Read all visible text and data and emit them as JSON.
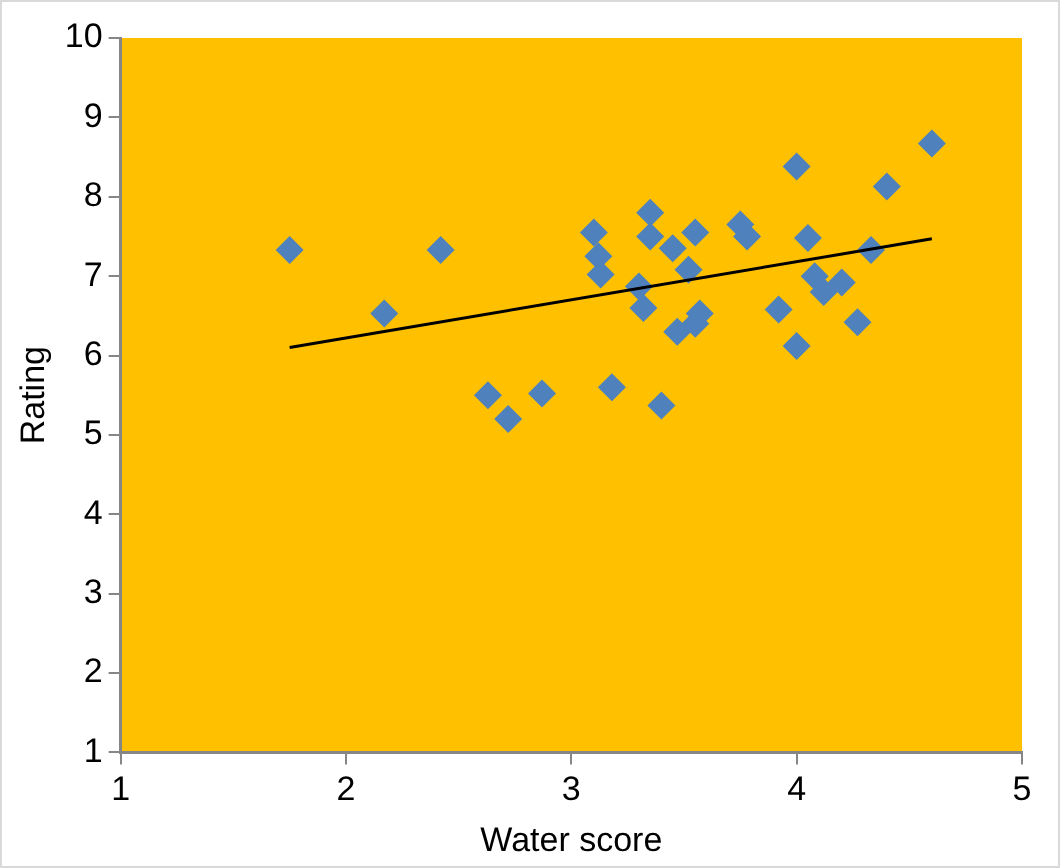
{
  "chart_data": {
    "type": "scatter",
    "xlabel": "Water score",
    "ylabel": "Rating",
    "xlim": [
      1,
      5
    ],
    "xticks": [
      1,
      2,
      3,
      4,
      5
    ],
    "ylim": [
      1,
      10
    ],
    "yticks": [
      1,
      2,
      3,
      4,
      5,
      6,
      7,
      8,
      9,
      10
    ],
    "grid": false,
    "legend": false,
    "marker": "diamond",
    "series": [
      {
        "color": "#4f81bd",
        "x": [
          1.75,
          2.17,
          2.42,
          2.63,
          2.72,
          2.87,
          3.1,
          3.12,
          3.13,
          3.18,
          3.3,
          3.32,
          3.35,
          3.35,
          3.4,
          3.45,
          3.47,
          3.52,
          3.55,
          3.55,
          3.57,
          3.75,
          3.78,
          3.92,
          4.0,
          4.0,
          4.05,
          4.08,
          4.12,
          4.2,
          4.27,
          4.33,
          4.4,
          4.6
        ],
        "values": [
          7.33,
          6.53,
          7.33,
          5.5,
          5.2,
          5.52,
          7.55,
          7.25,
          7.02,
          5.6,
          6.87,
          6.6,
          7.8,
          7.5,
          5.37,
          7.35,
          6.3,
          7.08,
          6.4,
          7.55,
          6.53,
          7.65,
          7.5,
          6.58,
          8.38,
          6.12,
          7.48,
          7.0,
          6.8,
          6.92,
          6.42,
          7.33,
          8.13,
          8.67
        ]
      },
      {
        "type": "line",
        "marker": "none",
        "color": "#000000",
        "x": [
          1.75,
          4.6
        ],
        "values": [
          6.1,
          7.47
        ]
      }
    ]
  }
}
